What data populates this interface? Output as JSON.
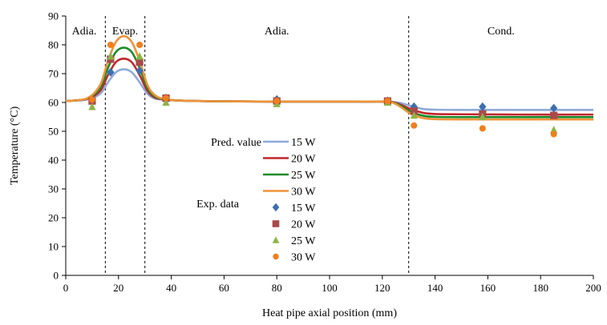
{
  "chart_data": {
    "type": "line",
    "title": "",
    "xlabel": "Heat pipe axial position (mm)",
    "ylabel": "Temperature (°C)",
    "xlim": [
      0,
      200
    ],
    "ylim": [
      0,
      90
    ],
    "xticks": [
      0,
      20,
      40,
      60,
      80,
      100,
      120,
      140,
      160,
      180,
      200
    ],
    "yticks": [
      0,
      10,
      20,
      30,
      40,
      50,
      60,
      70,
      80,
      90
    ],
    "grid": false,
    "region_boundaries": [
      15,
      30,
      130
    ],
    "regions": [
      {
        "label": "Adia.",
        "x": 7
      },
      {
        "label": "Evap.",
        "x": 22.5
      },
      {
        "label": "Adia.",
        "x": 80
      },
      {
        "label": "Cond.",
        "x": 165
      }
    ],
    "legend": {
      "placement": "center",
      "pred_label": "Pred. value",
      "exp_label": "Exp. data"
    },
    "series": [
      {
        "name": "15 W",
        "kind": "line",
        "color": "#8eaad8",
        "x": [
          0,
          8,
          13,
          16,
          19,
          22,
          25,
          28,
          31,
          34,
          38,
          45,
          60,
          80,
          100,
          120,
          124,
          127,
          130,
          133,
          136,
          140,
          150,
          170,
          200
        ],
        "y": [
          60.5,
          61,
          63,
          67,
          70.5,
          71.5,
          70.5,
          67,
          63,
          61.3,
          61,
          60.6,
          60.4,
          60.3,
          60.3,
          60.3,
          60.2,
          59.8,
          59,
          58.2,
          57.7,
          57.5,
          57.4,
          57.4,
          57.4
        ]
      },
      {
        "name": "20 W",
        "kind": "line",
        "color": "#c0272d",
        "x": [
          0,
          8,
          13,
          16,
          19,
          22,
          25,
          28,
          31,
          34,
          38,
          45,
          60,
          80,
          100,
          120,
          124,
          127,
          130,
          133,
          136,
          140,
          150,
          170,
          200
        ],
        "y": [
          60.5,
          61.2,
          64,
          69.5,
          74,
          75.2,
          74,
          69.5,
          64,
          61.6,
          61,
          60.6,
          60.4,
          60.3,
          60.3,
          60.3,
          60.1,
          59.2,
          58,
          57,
          56.3,
          56,
          55.9,
          55.8,
          55.8
        ]
      },
      {
        "name": "25 W",
        "kind": "line",
        "color": "#1a8a2a",
        "x": [
          0,
          8,
          13,
          16,
          19,
          22,
          25,
          28,
          31,
          34,
          38,
          45,
          60,
          80,
          100,
          120,
          124,
          127,
          130,
          133,
          136,
          140,
          150,
          170,
          200
        ],
        "y": [
          60.5,
          61.3,
          65,
          72,
          77.5,
          79,
          77.5,
          72,
          65,
          62,
          61,
          60.6,
          60.4,
          60.3,
          60.3,
          60.3,
          60,
          58.8,
          57.2,
          56,
          55.3,
          55,
          54.9,
          54.9,
          54.9
        ]
      },
      {
        "name": "30 W",
        "kind": "line",
        "color": "#f0923a",
        "x": [
          0,
          8,
          13,
          16,
          19,
          22,
          25,
          28,
          31,
          34,
          38,
          45,
          60,
          80,
          100,
          120,
          124,
          127,
          130,
          133,
          136,
          140,
          150,
          170,
          200
        ],
        "y": [
          60.5,
          61.4,
          66,
          74.5,
          81,
          83,
          81,
          74.5,
          66,
          62.4,
          61.1,
          60.6,
          60.4,
          60.3,
          60.3,
          60.3,
          59.9,
          58.4,
          56.5,
          55.2,
          54.5,
          54.2,
          54.1,
          54.1,
          54.1
        ]
      },
      {
        "name": "15 W",
        "kind": "points",
        "marker": "diamond",
        "color": "#3d6fb0",
        "x": [
          10,
          17,
          28,
          38,
          80,
          122,
          132,
          158,
          185
        ],
        "y": [
          60.5,
          70.5,
          71,
          61.5,
          61,
          60.5,
          58.5,
          58.5,
          58
        ]
      },
      {
        "name": "20 W",
        "kind": "points",
        "marker": "square",
        "color": "#a94a4a",
        "x": [
          10,
          17,
          28,
          38,
          80,
          122,
          132,
          158,
          185
        ],
        "y": [
          60.5,
          75,
          74,
          61.5,
          60.5,
          60.5,
          57,
          56,
          55.5
        ]
      },
      {
        "name": "25 W",
        "kind": "points",
        "marker": "triangle",
        "color": "#8ab545",
        "x": [
          10,
          17,
          28,
          38,
          80,
          122,
          132,
          158,
          185
        ],
        "y": [
          58.5,
          76,
          76,
          60,
          59.5,
          60,
          55.5,
          55,
          50.5
        ]
      },
      {
        "name": "30 W",
        "kind": "points",
        "marker": "circle",
        "color": "#f07f1c",
        "x": [
          10,
          17,
          28,
          38,
          80,
          122,
          132,
          158,
          185
        ],
        "y": [
          61,
          80,
          80,
          61.5,
          60.5,
          60.5,
          52,
          51,
          49
        ]
      }
    ]
  }
}
